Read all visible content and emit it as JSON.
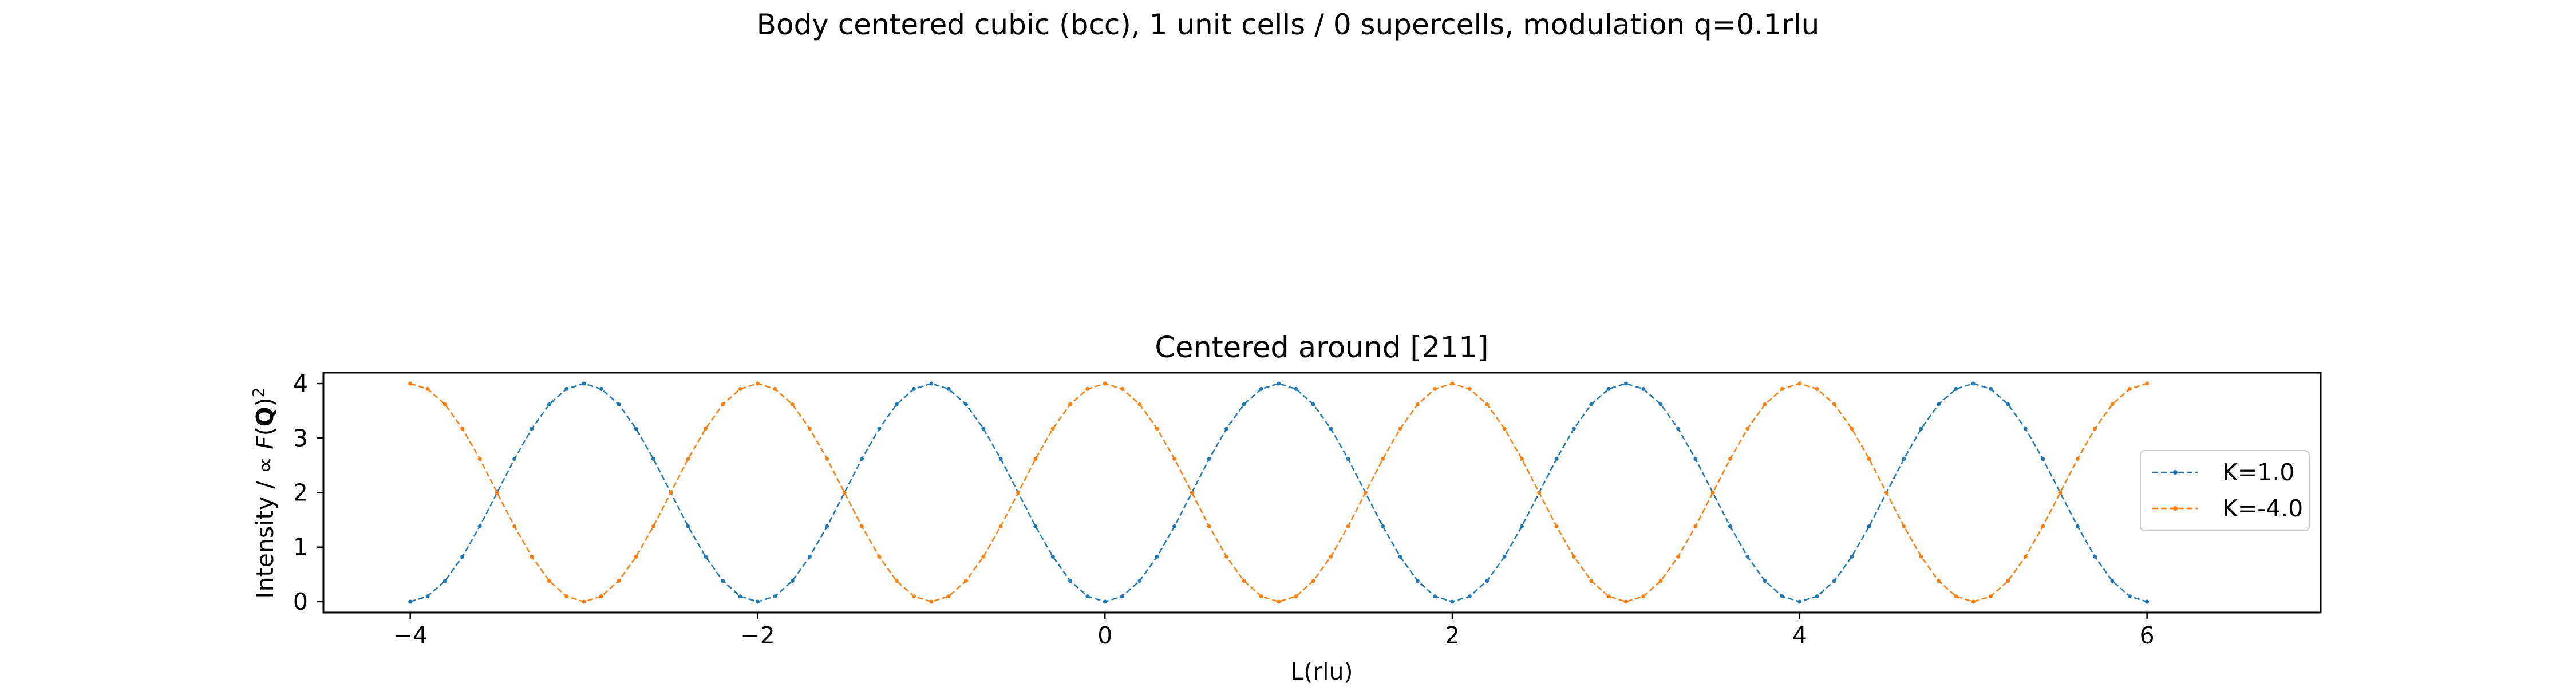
{
  "figure": {
    "suptitle": "Body centered cubic (bcc), 1 unit cells / 0 supercells, modulation q=0.1rlu"
  },
  "chart_data": {
    "type": "line",
    "title": "Centered around [211]",
    "xlabel": "L(rlu)",
    "ylabel": "Intensity / ∝ F(Q)²",
    "xlim": [
      -4.5,
      7.0
    ],
    "ylim": [
      -0.2,
      4.2
    ],
    "xticks": [
      -4,
      -2,
      0,
      2,
      4,
      6
    ],
    "xtick_labels": [
      "−4",
      "−2",
      "0",
      "2",
      "4",
      "6"
    ],
    "yticks": [
      0,
      1,
      2,
      3,
      4
    ],
    "ytick_labels": [
      "0",
      "1",
      "2",
      "3",
      "4"
    ],
    "grid": false,
    "legend_position": "center-right",
    "x_range": [
      -4,
      6
    ],
    "x_step": 0.1,
    "series": [
      {
        "name": "K=1.0",
        "color": "#1f77b4",
        "formula": "4*sin^2(pi*L/2)",
        "style": "dashed line with point markers"
      },
      {
        "name": "K=-4.0",
        "color": "#ff7f0e",
        "formula": "4*cos^2(pi*L/2)",
        "style": "dashed line with point markers"
      }
    ]
  }
}
